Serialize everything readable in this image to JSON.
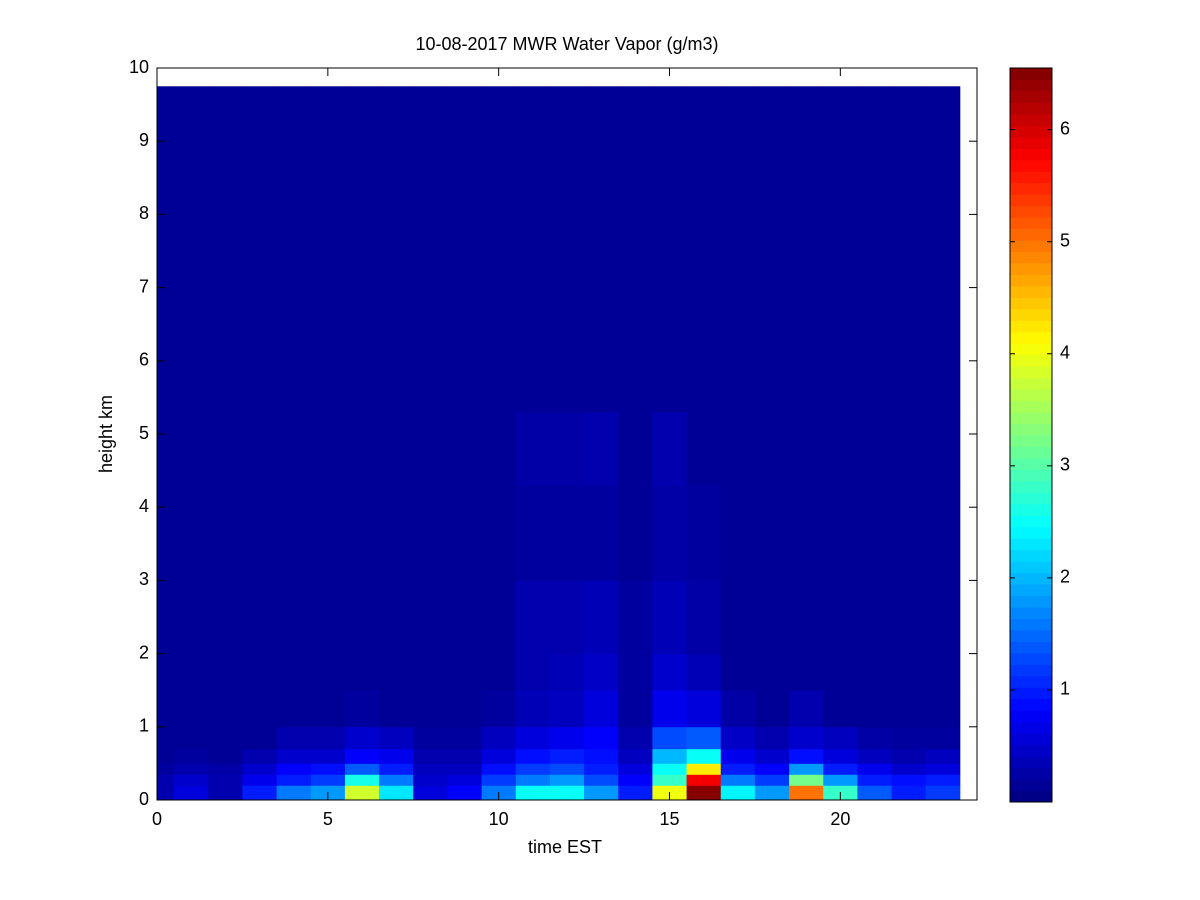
{
  "chart_data": {
    "type": "heatmap",
    "title": "10-08-2017 MWR Water Vapor (g/m3)",
    "x_label": "time EST",
    "y_label": "height km",
    "x_edges": [
      0,
      0.5,
      1.5,
      2.5,
      3.5,
      4.5,
      5.5,
      6.5,
      7.5,
      8.5,
      9.5,
      10.5,
      11.5,
      12.5,
      13.5,
      14.5,
      15.5,
      16.5,
      17.5,
      18.5,
      19.5,
      20.5,
      21.5,
      22.5,
      23.5
    ],
    "y_edges": [
      0,
      0.1,
      0.2,
      0.35,
      0.5,
      0.7,
      1.0,
      1.5,
      2.0,
      3.0,
      4.3,
      5.3,
      9.75
    ],
    "values": [
      [
        0.3,
        0.3,
        0.3,
        0.2,
        0.15,
        0.15,
        0.15,
        0.15,
        0.15,
        0.15,
        0.15,
        0.15
      ],
      [
        0.6,
        0.6,
        0.5,
        0.3,
        0.2,
        0.15,
        0.15,
        0.15,
        0.15,
        0.15,
        0.15,
        0.15
      ],
      [
        0.3,
        0.3,
        0.3,
        0.25,
        0.15,
        0.15,
        0.15,
        0.15,
        0.15,
        0.15,
        0.15,
        0.15
      ],
      [
        1.0,
        1.0,
        0.7,
        0.5,
        0.3,
        0.15,
        0.15,
        0.15,
        0.15,
        0.15,
        0.15,
        0.15
      ],
      [
        1.6,
        1.6,
        1.0,
        0.8,
        0.5,
        0.3,
        0.15,
        0.15,
        0.15,
        0.15,
        0.15,
        0.15
      ],
      [
        1.8,
        1.8,
        1.2,
        0.9,
        0.5,
        0.3,
        0.15,
        0.15,
        0.15,
        0.15,
        0.15,
        0.15
      ],
      [
        3.8,
        3.8,
        2.6,
        1.4,
        0.8,
        0.5,
        0.2,
        0.15,
        0.15,
        0.15,
        0.15,
        0.15
      ],
      [
        2.3,
        2.3,
        1.6,
        1.0,
        0.7,
        0.4,
        0.15,
        0.15,
        0.15,
        0.15,
        0.15,
        0.15
      ],
      [
        0.6,
        0.6,
        0.5,
        0.4,
        0.3,
        0.2,
        0.15,
        0.15,
        0.15,
        0.15,
        0.15,
        0.15
      ],
      [
        0.8,
        0.8,
        0.6,
        0.4,
        0.3,
        0.2,
        0.15,
        0.15,
        0.15,
        0.15,
        0.15,
        0.15
      ],
      [
        1.6,
        1.6,
        1.2,
        0.9,
        0.6,
        0.4,
        0.2,
        0.15,
        0.15,
        0.15,
        0.15,
        0.15
      ],
      [
        2.5,
        2.5,
        1.6,
        1.2,
        0.9,
        0.6,
        0.35,
        0.3,
        0.3,
        0.2,
        0.25,
        0.15
      ],
      [
        2.5,
        2.5,
        1.8,
        1.3,
        1.0,
        0.7,
        0.4,
        0.35,
        0.3,
        0.2,
        0.25,
        0.15
      ],
      [
        1.8,
        1.8,
        1.3,
        1.0,
        0.9,
        0.8,
        0.6,
        0.45,
        0.35,
        0.2,
        0.3,
        0.15
      ],
      [
        1.0,
        1.0,
        0.8,
        0.6,
        0.4,
        0.3,
        0.2,
        0.2,
        0.2,
        0.15,
        0.15,
        0.15
      ],
      [
        4.0,
        4.0,
        2.8,
        2.5,
        2.0,
        1.3,
        0.7,
        0.5,
        0.35,
        0.25,
        0.3,
        0.15
      ],
      [
        6.5,
        6.5,
        5.8,
        4.2,
        2.5,
        1.4,
        0.6,
        0.35,
        0.25,
        0.2,
        0.15,
        0.15
      ],
      [
        2.4,
        2.4,
        1.6,
        1.0,
        0.7,
        0.45,
        0.25,
        0.15,
        0.15,
        0.15,
        0.15,
        0.15
      ],
      [
        1.8,
        1.8,
        1.2,
        0.8,
        0.5,
        0.3,
        0.15,
        0.15,
        0.15,
        0.15,
        0.15,
        0.15
      ],
      [
        5.0,
        5.0,
        3.2,
        1.8,
        0.9,
        0.5,
        0.3,
        0.15,
        0.15,
        0.15,
        0.15,
        0.15
      ],
      [
        2.8,
        2.8,
        1.8,
        1.0,
        0.6,
        0.4,
        0.15,
        0.15,
        0.15,
        0.15,
        0.15,
        0.15
      ],
      [
        1.4,
        1.4,
        1.0,
        0.7,
        0.4,
        0.25,
        0.15,
        0.15,
        0.15,
        0.15,
        0.15,
        0.15
      ],
      [
        1.0,
        1.0,
        0.9,
        0.5,
        0.3,
        0.2,
        0.15,
        0.15,
        0.15,
        0.15,
        0.15,
        0.15
      ],
      [
        1.2,
        1.2,
        1.0,
        0.6,
        0.4,
        0.2,
        0.15,
        0.15,
        0.15,
        0.15,
        0.15,
        0.15
      ]
    ],
    "xlim": [
      0,
      24
    ],
    "xticks": [
      0,
      5,
      10,
      15,
      20
    ],
    "ylim": [
      0,
      10
    ],
    "yticks": [
      0,
      1,
      2,
      3,
      4,
      5,
      6,
      7,
      8,
      9,
      10
    ],
    "colormap": "jet",
    "clim": [
      0,
      6.55
    ],
    "colorbar_ticks": [
      1,
      2,
      3,
      4,
      5,
      6
    ]
  }
}
